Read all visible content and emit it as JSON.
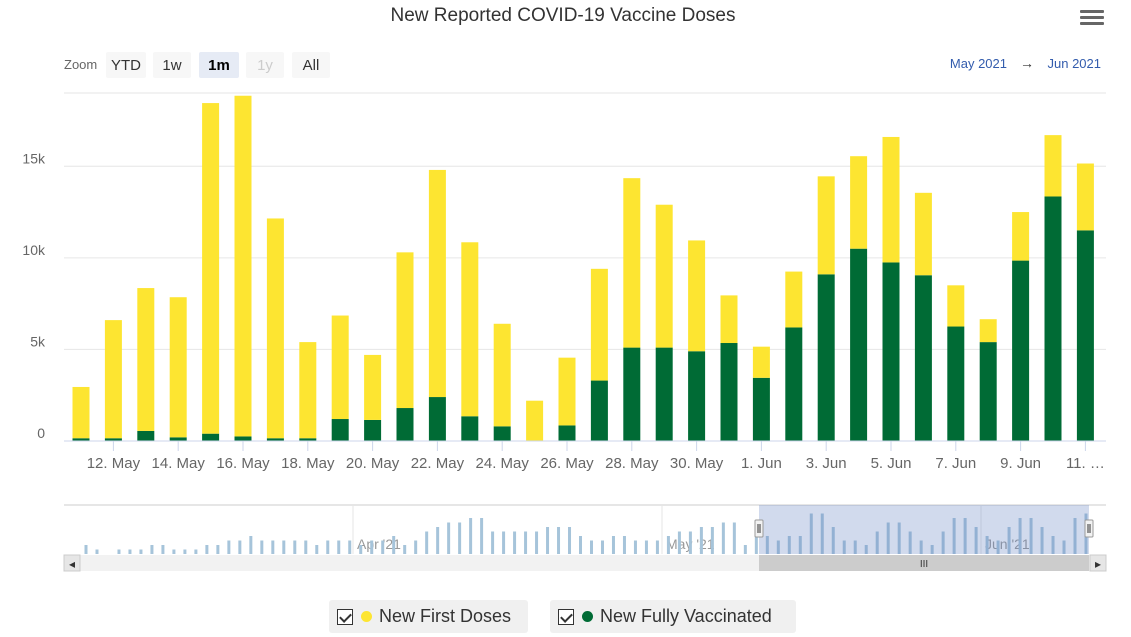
{
  "chart_data": {
    "type": "bar",
    "stacked": true,
    "title": "New Reported COVID-19 Vaccine Doses",
    "zoom": {
      "label": "Zoom",
      "buttons": [
        {
          "label": "YTD",
          "state": "normal"
        },
        {
          "label": "1w",
          "state": "normal"
        },
        {
          "label": "1m",
          "state": "active"
        },
        {
          "label": "1y",
          "state": "disabled"
        },
        {
          "label": "All",
          "state": "normal"
        }
      ]
    },
    "range": {
      "from": "May 2021",
      "arrow": "→",
      "to": "Jun 2021"
    },
    "y_axis": {
      "min": 0,
      "max": 19000,
      "ticks": [
        0,
        5000,
        10000,
        15000
      ],
      "tick_labels": [
        "0",
        "5k",
        "10k",
        "15k"
      ]
    },
    "x_tick_labels": [
      "12. May",
      "14. May",
      "16. May",
      "18. May",
      "20. May",
      "22. May",
      "24. May",
      "26. May",
      "28. May",
      "30. May",
      "1. Jun",
      "3. Jun",
      "5. Jun",
      "7. Jun",
      "9. Jun",
      "11. …"
    ],
    "categories": [
      "11 May",
      "12 May",
      "13 May",
      "14 May",
      "15 May",
      "16 May",
      "17 May",
      "18 May",
      "19 May",
      "20 May",
      "21 May",
      "22 May",
      "23 May",
      "24 May",
      "25 May",
      "26 May",
      "27 May",
      "28 May",
      "29 May",
      "30 May",
      "31 May",
      "1 Jun",
      "2 Jun",
      "3 Jun",
      "4 Jun",
      "5 Jun",
      "6 Jun",
      "7 Jun",
      "8 Jun",
      "9 Jun",
      "10 Jun",
      "11 Jun"
    ],
    "series": [
      {
        "name": "New Fully Vaccinated",
        "color": "#006b35",
        "values": [
          150,
          150,
          550,
          200,
          400,
          250,
          150,
          150,
          1200,
          1150,
          1800,
          2400,
          1350,
          800,
          0,
          850,
          3300,
          5100,
          5100,
          4900,
          5350,
          3450,
          6200,
          9100,
          10500,
          9750,
          9050,
          6250,
          5400,
          9850,
          13350,
          11500
        ]
      },
      {
        "name": "New First Doses",
        "color": "#fde531",
        "values": [
          2800,
          6450,
          7800,
          7650,
          18050,
          18600,
          12000,
          5250,
          5650,
          3550,
          8500,
          12400,
          9500,
          5600,
          2200,
          3700,
          6100,
          9250,
          7800,
          6050,
          2600,
          1700,
          3050,
          5350,
          5050,
          6850,
          4500,
          2250,
          1250,
          2650,
          3350,
          3650
        ]
      }
    ],
    "navigator": {
      "labels": [
        "Apr '21",
        "May '21",
        "Jun '21"
      ],
      "values": [
        2,
        1,
        0,
        1,
        1,
        1,
        2,
        2,
        1,
        1,
        1,
        2,
        2,
        3,
        3,
        4,
        3,
        3,
        3,
        3,
        3,
        2,
        3,
        3,
        3,
        2,
        3,
        3,
        4,
        2,
        3,
        5,
        6,
        7,
        7,
        8,
        8,
        5,
        5,
        5,
        5,
        5,
        6,
        6,
        6,
        4,
        3,
        3,
        4,
        4,
        3,
        3,
        3,
        4,
        5,
        5,
        6,
        6,
        7,
        7,
        2,
        4,
        4,
        3,
        4,
        4,
        9,
        9,
        6,
        3,
        3,
        2,
        5,
        7,
        7,
        5,
        3,
        2,
        5,
        8,
        8,
        6,
        4,
        3,
        6,
        8,
        8,
        6,
        4,
        3,
        8,
        9
      ]
    }
  },
  "legend": [
    {
      "label": "New First Doses",
      "color": "#fde531"
    },
    {
      "label": "New Fully Vaccinated",
      "color": "#006b35"
    }
  ],
  "scrollbar": {
    "grip": "III",
    "left_arrow": "◂",
    "right_arrow": "▸"
  }
}
